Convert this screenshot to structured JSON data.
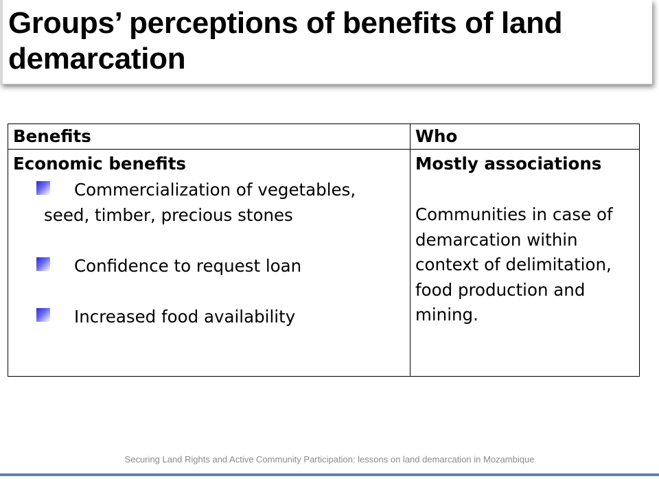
{
  "slide": {
    "title": "Groups’ perceptions of benefits of land demarcation"
  },
  "table": {
    "headers": {
      "benefits": "Benefits",
      "who": "Who"
    },
    "benefits": {
      "section_title": "Economic benefits",
      "items": [
        {
          "first_line": "Commercialization of vegetables,",
          "second_line": "seed, timber, precious stones"
        },
        {
          "first_line": "Confidence to request loan"
        },
        {
          "first_line": "Increased food availability"
        }
      ]
    },
    "who": {
      "heading": "Mostly associations",
      "lines": [
        "Communities in case of",
        "demarcation within",
        "context of delimitation,",
        "food production and",
        "mining."
      ]
    }
  },
  "footer": {
    "text": "Securing Land Rights and Active Community Participation: lessons on land demarcation in Mozambique"
  },
  "colors": {
    "bullet": "#2a2ad8",
    "rule": "#5b84b9",
    "footer_text": "#8a8a8a"
  },
  "icons": {
    "bullet": "square-bullet-icon"
  }
}
